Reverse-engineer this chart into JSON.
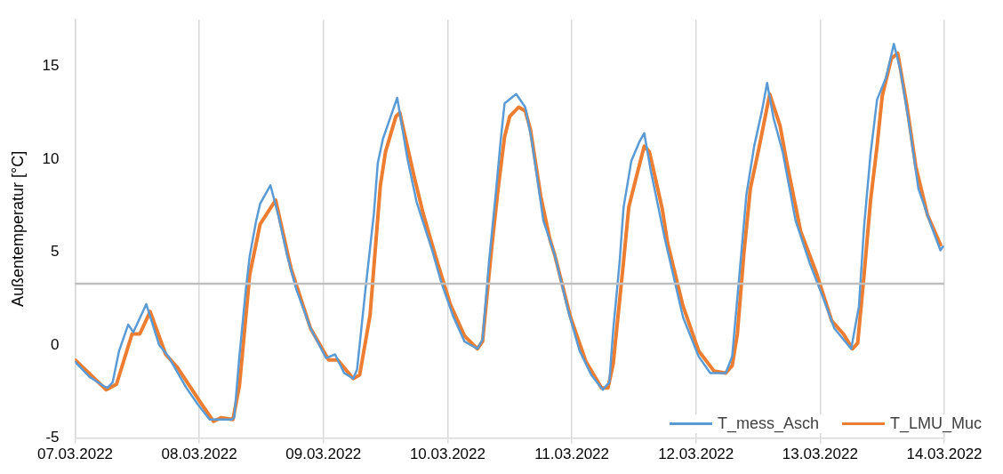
{
  "chart_data": {
    "type": "line",
    "ylabel": "Außentemperatur [°C]",
    "xlim": [
      "2022-03-07",
      "2022-03-14"
    ],
    "xticks": [
      {
        "value": "2022-03-07",
        "label": "07.03.2022"
      },
      {
        "value": "2022-03-08",
        "label": "08.03.2022"
      },
      {
        "value": "2022-03-09",
        "label": "09.03.2022"
      },
      {
        "value": "2022-03-10",
        "label": "10.03.2022"
      },
      {
        "value": "2022-03-11",
        "label": "11.03.2022"
      },
      {
        "value": "2022-03-12",
        "label": "12.03.2022"
      },
      {
        "value": "2022-03-13",
        "label": "13.03.2022"
      },
      {
        "value": "2022-03-14",
        "label": "14.03.2022"
      }
    ],
    "ylim": [
      -5,
      17.5
    ],
    "yticks": [
      -5,
      0,
      5,
      10,
      15
    ],
    "grid": "x",
    "legend": "bottom right",
    "marker": "none",
    "line_style": "solid",
    "ref_lines": [
      {
        "axis": "y",
        "value": 3.3,
        "color": "#bfbfbf"
      }
    ],
    "series": [
      {
        "name": "T_mess_Asch",
        "color": "#5b9bd5",
        "x": [
          "2022-03-07T00:00",
          "2022-03-07T02:45",
          "2022-03-07T05:30",
          "2022-03-07T06:15",
          "2022-03-07T07:15",
          "2022-03-07T08:30",
          "2022-03-07T10:15",
          "2022-03-07T11:15",
          "2022-03-07T13:45",
          "2022-03-07T16:15",
          "2022-03-07T18:00",
          "2022-03-07T21:30",
          "2022-03-07T23:45",
          "2022-03-08T02:00",
          "2022-03-08T06:15",
          "2022-03-08T06:45",
          "2022-03-08T07:45",
          "2022-03-08T09:00",
          "2022-03-08T09:45",
          "2022-03-08T11:00",
          "2022-03-08T11:45",
          "2022-03-08T13:45",
          "2022-03-08T15:15",
          "2022-03-08T17:00",
          "2022-03-08T18:45",
          "2022-03-08T21:30",
          "2022-03-09T00:30",
          "2022-03-09T02:15",
          "2022-03-09T04:00",
          "2022-03-09T05:45",
          "2022-03-09T06:30",
          "2022-03-09T08:00",
          "2022-03-09T09:45",
          "2022-03-09T10:30",
          "2022-03-09T11:30",
          "2022-03-09T13:00",
          "2022-03-09T14:15",
          "2022-03-09T16:15",
          "2022-03-09T18:00",
          "2022-03-09T21:00",
          "2022-03-09T22:45",
          "2022-03-10T01:00",
          "2022-03-10T03:15",
          "2022-03-10T05:45",
          "2022-03-10T06:45",
          "2022-03-10T08:00",
          "2022-03-10T09:15",
          "2022-03-10T10:15",
          "2022-03-10T11:00",
          "2022-03-10T13:15",
          "2022-03-10T15:00",
          "2022-03-10T16:15",
          "2022-03-10T18:30",
          "2022-03-10T20:45",
          "2022-03-10T23:15",
          "2022-03-11T01:30",
          "2022-03-11T03:45",
          "2022-03-11T06:00",
          "2022-03-11T07:15",
          "2022-03-11T08:00",
          "2022-03-11T09:15",
          "2022-03-11T10:00",
          "2022-03-11T11:30",
          "2022-03-11T13:00",
          "2022-03-11T14:00",
          "2022-03-11T15:15",
          "2022-03-11T18:00",
          "2022-03-11T21:30",
          "2022-03-12T00:30",
          "2022-03-12T02:45",
          "2022-03-12T05:45",
          "2022-03-12T07:00",
          "2022-03-12T08:45",
          "2022-03-12T09:45",
          "2022-03-12T11:15",
          "2022-03-12T12:45",
          "2022-03-12T13:45",
          "2022-03-12T15:00",
          "2022-03-12T16:45",
          "2022-03-12T19:15",
          "2022-03-12T22:00",
          "2022-03-13T00:30",
          "2022-03-13T02:45",
          "2022-03-13T06:00",
          "2022-03-13T07:30",
          "2022-03-13T08:30",
          "2022-03-13T09:45",
          "2022-03-13T11:00",
          "2022-03-13T12:45",
          "2022-03-13T14:15",
          "2022-03-13T15:30",
          "2022-03-13T17:15",
          "2022-03-13T19:00",
          "2022-03-13T21:30",
          "2022-03-13T23:15",
          "2022-03-13T23:45"
        ],
        "values": [
          -0.9,
          -1.7,
          -2.2,
          -2.3,
          -2.0,
          -0.3,
          1.1,
          0.7,
          2.2,
          0,
          -0.6,
          -2.3,
          -3.2,
          -4.0,
          -4.0,
          -3.9,
          -0.6,
          3.0,
          4.8,
          6.7,
          7.6,
          8.6,
          7.0,
          4.8,
          3.0,
          0.9,
          -0.7,
          -0.5,
          -1.5,
          -1.8,
          -1.3,
          2.7,
          7.1,
          9.8,
          11.1,
          12.3,
          13.3,
          10.0,
          7.7,
          5.1,
          3.4,
          1.6,
          0.2,
          -0.2,
          0.3,
          4.5,
          8.0,
          11.0,
          13.0,
          13.5,
          12.8,
          11.0,
          6.7,
          4.8,
          1.9,
          -0.3,
          -1.6,
          -2.4,
          -2.0,
          0.8,
          4.5,
          7.4,
          9.9,
          10.9,
          11.4,
          9.4,
          5.7,
          1.5,
          -0.6,
          -1.5,
          -1.5,
          -0.6,
          4.9,
          8.1,
          10.7,
          12.6,
          14.1,
          12.2,
          10.4,
          6.7,
          4.4,
          2.6,
          0.9,
          -0.2,
          2.1,
          6.4,
          10.3,
          13.2,
          14.4,
          16.2,
          14.8,
          11.8,
          8.4,
          6.4,
          5.1,
          5.3
        ]
      },
      {
        "name": "T_LMU_Muc",
        "color": "#ed7d31",
        "x": [
          "2022-03-07T00:00",
          "2022-03-07T06:00",
          "2022-03-07T08:00",
          "2022-03-07T11:00",
          "2022-03-07T12:30",
          "2022-03-07T14:30",
          "2022-03-07T17:30",
          "2022-03-07T19:45",
          "2022-03-08T00:30",
          "2022-03-08T02:45",
          "2022-03-08T04:15",
          "2022-03-08T06:30",
          "2022-03-08T07:45",
          "2022-03-08T09:45",
          "2022-03-08T11:45",
          "2022-03-08T14:45",
          "2022-03-08T17:45",
          "2022-03-08T21:30",
          "2022-03-09T01:00",
          "2022-03-09T02:45",
          "2022-03-09T05:45",
          "2022-03-09T07:00",
          "2022-03-09T09:00",
          "2022-03-09T11:00",
          "2022-03-09T12:00",
          "2022-03-09T14:00",
          "2022-03-09T14:45",
          "2022-03-09T17:30",
          "2022-03-09T19:15",
          "2022-03-09T21:45",
          "2022-03-10T00:30",
          "2022-03-10T03:15",
          "2022-03-10T05:45",
          "2022-03-10T06:45",
          "2022-03-10T08:30",
          "2022-03-10T09:45",
          "2022-03-10T11:00",
          "2022-03-10T12:00",
          "2022-03-10T13:45",
          "2022-03-10T15:00",
          "2022-03-10T16:00",
          "2022-03-10T18:00",
          "2022-03-10T19:45",
          "2022-03-10T20:45",
          "2022-03-10T23:45",
          "2022-03-11T02:45",
          "2022-03-11T05:45",
          "2022-03-11T07:00",
          "2022-03-11T08:00",
          "2022-03-11T10:00",
          "2022-03-11T11:00",
          "2022-03-11T12:15",
          "2022-03-11T14:00",
          "2022-03-11T15:00",
          "2022-03-11T17:30",
          "2022-03-11T18:30",
          "2022-03-11T21:30",
          "2022-03-12T00:30",
          "2022-03-12T03:30",
          "2022-03-12T05:45",
          "2022-03-12T07:00",
          "2022-03-12T08:00",
          "2022-03-12T09:15",
          "2022-03-12T10:30",
          "2022-03-12T12:15",
          "2022-03-12T14:15",
          "2022-03-12T16:15",
          "2022-03-12T17:30",
          "2022-03-12T20:15",
          "2022-03-12T23:15",
          "2022-03-13T02:15",
          "2022-03-13T04:30",
          "2022-03-13T06:15",
          "2022-03-13T07:15",
          "2022-03-13T08:30",
          "2022-03-13T09:45",
          "2022-03-13T11:00",
          "2022-03-13T12:00",
          "2022-03-13T13:45",
          "2022-03-13T15:00",
          "2022-03-13T16:45",
          "2022-03-13T18:30",
          "2022-03-13T20:45",
          "2022-03-13T23:15"
        ],
        "values": [
          -0.8,
          -2.4,
          -2.1,
          0.6,
          0.6,
          1.8,
          -0.5,
          -1.2,
          -3.2,
          -4.1,
          -3.9,
          -4.0,
          -2.2,
          3.8,
          6.5,
          7.8,
          4.1,
          0.9,
          -0.8,
          -0.8,
          -1.8,
          -1.6,
          1.6,
          8.6,
          10.4,
          12.3,
          12.5,
          9.1,
          7.1,
          4.7,
          2.2,
          0.5,
          -0.2,
          0.2,
          5.2,
          8.4,
          11.2,
          12.3,
          12.8,
          12.6,
          11.6,
          8.0,
          5.7,
          4.8,
          1.5,
          -0.9,
          -2.3,
          -2.3,
          -1.0,
          4.5,
          7.4,
          8.8,
          10.7,
          10.4,
          7.3,
          5.5,
          2.1,
          -0.3,
          -1.4,
          -1.5,
          -1.1,
          0.6,
          4.9,
          8.4,
          10.7,
          13.5,
          11.8,
          9.9,
          6.1,
          3.9,
          1.3,
          0.6,
          -0.2,
          0.1,
          3.8,
          7.8,
          10.7,
          13.4,
          15.4,
          15.7,
          12.9,
          9.6,
          7.0,
          5.4
        ]
      }
    ]
  }
}
